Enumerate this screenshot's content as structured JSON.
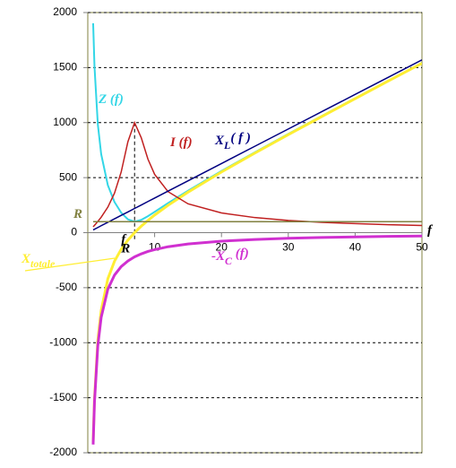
{
  "chart_data": {
    "type": "line",
    "x": [
      0.8,
      1,
      1.5,
      2,
      3,
      4,
      5,
      6,
      7,
      8,
      9,
      10,
      12,
      15,
      20,
      25,
      30,
      35,
      40,
      45,
      50
    ],
    "series": [
      {
        "name": "Z (f)",
        "color": "#33d6e6",
        "width": 2,
        "values": [
          1903,
          1512,
          985,
          714,
          431,
          278,
          181,
          121,
          100,
          116,
          150,
          189,
          268,
          381,
          560,
          730,
          897,
          1060,
          1221,
          1383,
          1542
        ]
      },
      {
        "name": "X",
        "name_sub": "totale",
        "color": "#ffee33",
        "width": 3,
        "values": [
          -1900,
          -1509,
          -980,
          -707,
          -419,
          -259,
          -151,
          -68,
          0,
          59,
          111,
          160,
          248,
          368,
          551,
          723,
          891,
          1055,
          1217,
          1379,
          1539
        ]
      },
      {
        "name": "I (f)",
        "color": "#c02020",
        "width": 1.5,
        "values": [
          53,
          66,
          102,
          140,
          232,
          360,
          552,
          826,
          1000,
          862,
          668,
          530,
          373,
          262,
          179,
          137,
          111,
          94,
          82,
          72,
          65
        ]
      },
      {
        "name": "X",
        "name_sub": "L",
        "name_suffix": "( f )",
        "color": "#000080",
        "width": 1.5,
        "values": [
          25,
          31,
          47,
          63,
          94,
          126,
          157,
          188,
          220,
          251,
          283,
          314,
          377,
          471,
          628,
          785,
          942,
          1099,
          1256,
          1413,
          1570
        ]
      },
      {
        "name": "-X",
        "name_sub": "C",
        "name_suffix": " (f)",
        "color": "#d030d0",
        "width": 3,
        "values": [
          -1925,
          -1540,
          -1027,
          -770,
          -513,
          -385,
          -308,
          -257,
          -220,
          -193,
          -171,
          -154,
          -128,
          -103,
          -77,
          -62,
          -51,
          -44,
          -39,
          -34,
          -31
        ]
      },
      {
        "name": "R",
        "color": "#808040",
        "width": 1.5,
        "values": [
          100,
          100,
          100,
          100,
          100,
          100,
          100,
          100,
          100,
          100,
          100,
          100,
          100,
          100,
          100,
          100,
          100,
          100,
          100,
          100,
          100
        ]
      }
    ],
    "x_label": "f",
    "resonance": {
      "x": 7,
      "label": "f",
      "label_sub": "R"
    },
    "xlim": [
      0,
      50
    ],
    "xticks": [
      10,
      20,
      30,
      40,
      50
    ],
    "ylim": [
      -2000,
      2000
    ],
    "yticks": [
      -2000,
      -1500,
      -1000,
      -500,
      0,
      500,
      1000,
      1500,
      2000
    ],
    "grid": true
  }
}
